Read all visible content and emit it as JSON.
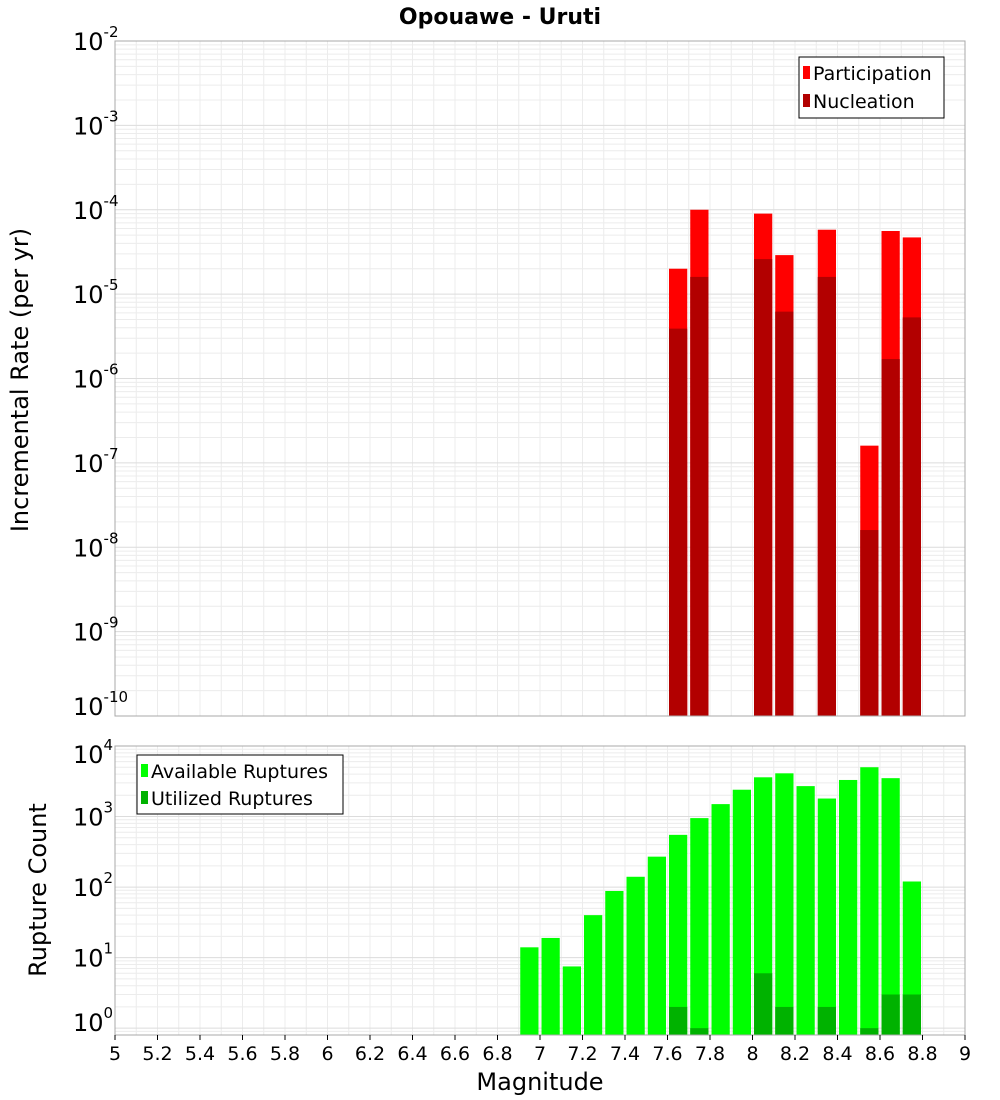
{
  "chart_data": [
    {
      "type": "bar",
      "title": "Opouawe - Uruti",
      "xlabel": "",
      "ylabel": "Incremental Rate (per yr)",
      "y_scale": "log",
      "ylim": [
        1e-10,
        0.01
      ],
      "xlim": [
        5,
        9
      ],
      "grid": true,
      "legend_position": "top-right",
      "bar_width": 0.1,
      "series": [
        {
          "name": "Participation",
          "color": "#ff0000",
          "x": [
            7.65,
            7.75,
            8.05,
            8.15,
            8.35,
            8.55,
            8.65,
            8.75
          ],
          "values": [
            2e-05,
            0.0001,
            9e-05,
            2.9e-05,
            5.8e-05,
            1.6e-07,
            5.6e-05,
            4.7e-05
          ]
        },
        {
          "name": "Nucleation",
          "color": "#b20000",
          "x": [
            7.65,
            7.75,
            8.05,
            8.15,
            8.35,
            8.55,
            8.65,
            8.75
          ],
          "values": [
            3.9e-06,
            1.6e-05,
            2.6e-05,
            6.2e-06,
            1.6e-05,
            1.6e-08,
            1.7e-06,
            5.3e-06
          ]
        }
      ]
    },
    {
      "type": "bar",
      "title": "",
      "xlabel": "Magnitude",
      "ylabel": "Rupture Count",
      "y_scale": "log",
      "ylim": [
        0.8,
        10000
      ],
      "xlim": [
        5,
        9
      ],
      "grid": true,
      "legend_position": "top-left",
      "bar_width": 0.1,
      "x_ticks": [
        "5",
        "5.2",
        "5.4",
        "5.6",
        "5.8",
        "6",
        "6.2",
        "6.4",
        "6.6",
        "6.8",
        "7",
        "7.2",
        "7.4",
        "7.6",
        "7.8",
        "8",
        "8.2",
        "8.4",
        "8.6",
        "8.8",
        "9"
      ],
      "series": [
        {
          "name": "Available Ruptures",
          "color": "#00ff00",
          "x": [
            6.95,
            7.05,
            7.15,
            7.25,
            7.35,
            7.45,
            7.55,
            7.65,
            7.75,
            7.85,
            7.95,
            8.05,
            8.15,
            8.25,
            8.35,
            8.45,
            8.55,
            8.65,
            8.75
          ],
          "values": [
            14,
            19,
            7.5,
            40,
            88,
            140,
            270,
            550,
            950,
            1500,
            2400,
            3600,
            4100,
            2700,
            1800,
            3300,
            5000,
            3500,
            120
          ]
        },
        {
          "name": "Utilized Ruptures",
          "color": "#00b200",
          "x": [
            7.65,
            7.75,
            8.05,
            8.15,
            8.35,
            8.55,
            8.65,
            8.75
          ],
          "values": [
            2,
            1,
            6,
            2,
            2,
            1,
            3,
            3
          ]
        }
      ]
    }
  ]
}
